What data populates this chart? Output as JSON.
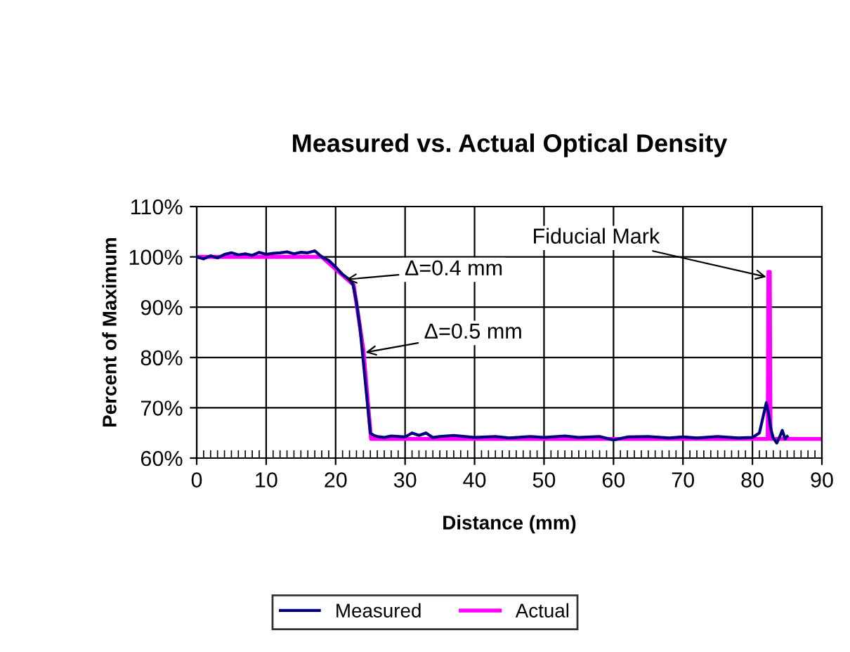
{
  "chart_data": {
    "type": "line",
    "title": "Measured vs. Actual Optical Density",
    "xlabel": "Distance (mm)",
    "ylabel": "Percent of Maximum",
    "xlim": [
      0,
      90
    ],
    "xticks": [
      0,
      10,
      20,
      30,
      40,
      50,
      60,
      70,
      80,
      90
    ],
    "ylim": [
      60,
      110
    ],
    "yticks": [
      {
        "value": 60,
        "label": "60%"
      },
      {
        "value": 70,
        "label": "70%"
      },
      {
        "value": 80,
        "label": "80%"
      },
      {
        "value": 90,
        "label": "90%"
      },
      {
        "value": 100,
        "label": "100%"
      },
      {
        "value": 110,
        "label": "110%"
      }
    ],
    "grid": true,
    "legend": "bottom",
    "marker": "none",
    "line_style": "solid",
    "series": [
      {
        "name": "Measured",
        "color": "#000080",
        "x": [
          0,
          1,
          2,
          3,
          4,
          5,
          6,
          7,
          8,
          9,
          10,
          11,
          12,
          13,
          14,
          15,
          16,
          17,
          18,
          19,
          20,
          21,
          22,
          22.5,
          23,
          23.5,
          24,
          24.5,
          25,
          25.5,
          26,
          27,
          28,
          30,
          31,
          32,
          33,
          34,
          35,
          37,
          40,
          43,
          45,
          48,
          50,
          53,
          55,
          58,
          60,
          62,
          65,
          68,
          70,
          72,
          75,
          78,
          80,
          81,
          81.5,
          82,
          82.3,
          82.7,
          83,
          83.5,
          84,
          84.3,
          84.7,
          85
        ],
        "values": [
          100,
          99.6,
          100.2,
          99.8,
          100.5,
          100.8,
          100.4,
          100.6,
          100.3,
          100.9,
          100.5,
          100.7,
          100.8,
          101,
          100.6,
          100.9,
          100.8,
          101.2,
          100,
          99.3,
          98,
          96.5,
          95.5,
          94.5,
          91,
          86,
          79,
          72,
          65,
          64.5,
          64.3,
          64.1,
          64.4,
          64.2,
          65,
          64.5,
          65,
          64.1,
          64.3,
          64.5,
          64.1,
          64.3,
          64,
          64.3,
          64.1,
          64.4,
          64.1,
          64.3,
          63.6,
          64.2,
          64.3,
          64,
          64.2,
          64,
          64.3,
          64,
          64.1,
          65,
          68,
          71,
          69,
          65.5,
          64,
          63,
          64.5,
          65.5,
          63.8,
          64.3
        ]
      },
      {
        "name": "Actual",
        "color": "#ff00ff",
        "x": [
          0,
          18,
          22.6,
          24,
          25.1,
          82.2,
          82.3,
          82.5,
          82.6,
          90
        ],
        "values": [
          100,
          100,
          94.4,
          81.5,
          63.8,
          63.8,
          97,
          97,
          63.8,
          63.8
        ]
      }
    ],
    "annotations": [
      {
        "text": "Δ=0.4 mm",
        "x": 21.5,
        "y": 95.5
      },
      {
        "text": "Δ=0.5 mm",
        "x": 24.3,
        "y": 81
      },
      {
        "text": "Fiducial Mark",
        "x": 82,
        "y": 96
      }
    ]
  }
}
